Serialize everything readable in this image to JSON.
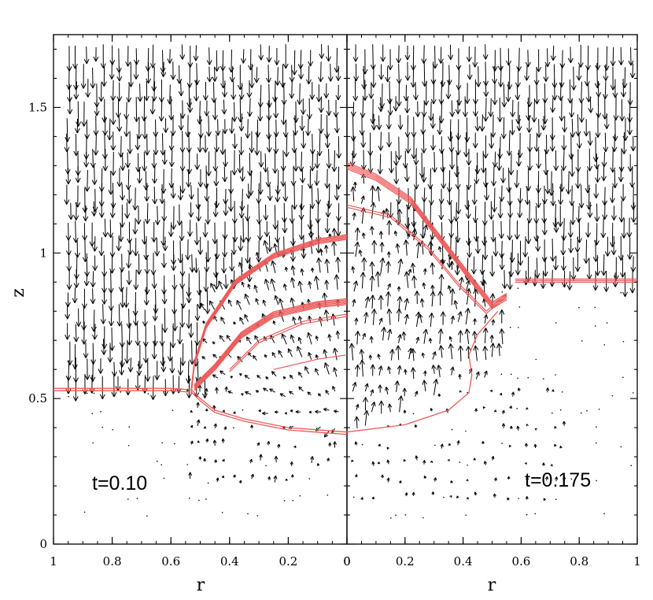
{
  "chart_data": [
    {
      "type": "vector-field",
      "panel": "left",
      "annotation": "t=0.10",
      "xlabel": "",
      "ylabel": "z",
      "xlim": [
        1,
        0
      ],
      "ylim": [
        0,
        1.75
      ],
      "x_ticks": [
        1,
        0.8,
        0.6,
        0.4,
        0.2,
        0
      ],
      "x_tick_labels": [
        "1",
        "0.8",
        "0.6",
        "0.4",
        "0.2",
        "0"
      ],
      "y_ticks": [
        0,
        0.5,
        1,
        1.5
      ],
      "y_tick_labels": [
        "0",
        "0.5",
        "1",
        "1.5"
      ],
      "contour_color": "#ee5a5a",
      "arrow_color": "#000000",
      "interface": {
        "outer_lower": [
          [
            1.0,
            0.535
          ],
          [
            0.6,
            0.535
          ],
          [
            0.53,
            0.53
          ],
          [
            0.5,
            0.5
          ],
          [
            0.45,
            0.46
          ],
          [
            0.35,
            0.43
          ],
          [
            0.2,
            0.4
          ],
          [
            0.0,
            0.385
          ]
        ],
        "outer_upper": [
          [
            0.53,
            0.53
          ],
          [
            0.52,
            0.62
          ],
          [
            0.48,
            0.75
          ],
          [
            0.38,
            0.9
          ],
          [
            0.25,
            0.99
          ],
          [
            0.1,
            1.04
          ],
          [
            0.0,
            1.055
          ]
        ],
        "inner_shell": [
          [
            0.52,
            0.54
          ],
          [
            0.45,
            0.61
          ],
          [
            0.36,
            0.72
          ],
          [
            0.25,
            0.79
          ],
          [
            0.1,
            0.825
          ],
          [
            0.0,
            0.835
          ]
        ],
        "inner_contour": [
          [
            0.4,
            0.6
          ],
          [
            0.3,
            0.7
          ],
          [
            0.15,
            0.765
          ],
          [
            0.0,
            0.79
          ]
        ],
        "lower_contour": [
          [
            0.25,
            0.6
          ],
          [
            0.1,
            0.635
          ],
          [
            0.0,
            0.65
          ]
        ]
      },
      "flow": {
        "upper_region": "downward arrows above interface",
        "bubble_region": "upward/outward arrows inside bubble"
      }
    },
    {
      "type": "vector-field",
      "panel": "right",
      "annotation": "t=0.175",
      "xlabel": "r",
      "ylabel": "",
      "xlim": [
        0,
        1
      ],
      "ylim": [
        0,
        1.75
      ],
      "x_ticks": [
        0,
        0.2,
        0.4,
        0.6,
        0.8,
        1
      ],
      "x_tick_labels": [
        "0",
        "0.2",
        "0.4",
        "0.6",
        "0.8",
        "1"
      ],
      "contour_color": "#ee5a5a",
      "arrow_color": "#000000",
      "interface": {
        "lower_boundary": [
          [
            0.0,
            0.385
          ],
          [
            0.2,
            0.41
          ],
          [
            0.35,
            0.46
          ],
          [
            0.42,
            0.52
          ],
          [
            0.43,
            0.58
          ],
          [
            0.42,
            0.65
          ],
          [
            0.45,
            0.72
          ],
          [
            0.52,
            0.8
          ]
        ],
        "upper_plume": [
          [
            0.0,
            1.3
          ],
          [
            0.1,
            1.26
          ],
          [
            0.22,
            1.18
          ],
          [
            0.32,
            1.05
          ],
          [
            0.42,
            0.92
          ],
          [
            0.5,
            0.82
          ],
          [
            0.55,
            0.85
          ]
        ],
        "second_contour": [
          [
            0.0,
            1.165
          ],
          [
            0.15,
            1.13
          ],
          [
            0.28,
            1.02
          ],
          [
            0.38,
            0.9
          ],
          [
            0.48,
            0.8
          ],
          [
            0.55,
            0.86
          ]
        ],
        "right_level": [
          [
            0.58,
            0.905
          ],
          [
            1.0,
            0.905
          ]
        ]
      },
      "flow": {
        "upper_region": "downward arrows right of plume",
        "bubble_region": "upward/outward arrows inside bubble"
      }
    }
  ],
  "shared_xlabel": "r"
}
